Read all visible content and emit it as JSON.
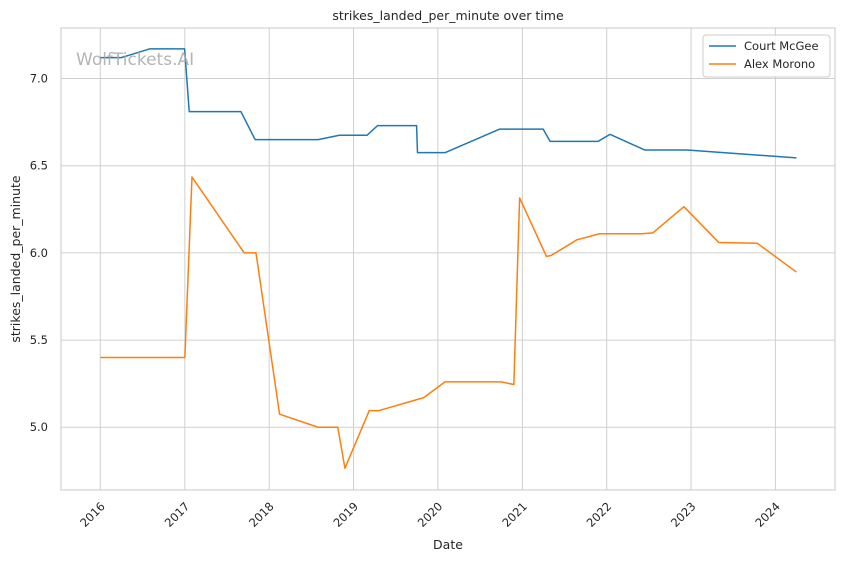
{
  "chart_data": {
    "type": "line",
    "title": "strikes_landed_per_minute over time",
    "xlabel": "Date",
    "ylabel": "strikes_landed_per_minute",
    "watermark": "WolfTickets.AI",
    "x_ticks": [
      "2016",
      "2017",
      "2018",
      "2019",
      "2020",
      "2021",
      "2022",
      "2023",
      "2024"
    ],
    "y_ticks": [
      "5.0",
      "5.5",
      "6.0",
      "6.5",
      "7.0"
    ],
    "xlim": [
      "2015-07-15",
      "2024-09-15"
    ],
    "ylim": [
      4.64,
      7.29
    ],
    "grid": true,
    "legend_position": "top-right",
    "colors": {
      "series0": "#1f77b4",
      "series1": "#ff7f0e",
      "grid": "#d0d0d0",
      "axes": "#c8c8c8"
    },
    "series": [
      {
        "name": "Court McGee",
        "points": [
          [
            "2016-01-01",
            7.12
          ],
          [
            "2016-04-01",
            7.12
          ],
          [
            "2016-08-01",
            7.17
          ],
          [
            "2016-12-31",
            7.17
          ],
          [
            "2017-01-20",
            6.81
          ],
          [
            "2017-09-01",
            6.81
          ],
          [
            "2017-11-01",
            6.65
          ],
          [
            "2018-08-01",
            6.65
          ],
          [
            "2018-11-01",
            6.675
          ],
          [
            "2019-03-01",
            6.675
          ],
          [
            "2019-04-15",
            6.73
          ],
          [
            "2019-10-01",
            6.73
          ],
          [
            "2019-10-05",
            6.575
          ],
          [
            "2020-02-01",
            6.575
          ],
          [
            "2020-09-25",
            6.71
          ],
          [
            "2021-04-01",
            6.71
          ],
          [
            "2021-05-01",
            6.64
          ],
          [
            "2021-11-25",
            6.64
          ],
          [
            "2022-01-15",
            6.68
          ],
          [
            "2022-06-15",
            6.59
          ],
          [
            "2022-12-15",
            6.59
          ],
          [
            "2024-04-01",
            6.545
          ]
        ]
      },
      {
        "name": "Alex Morono",
        "points": [
          [
            "2016-01-01",
            5.4
          ],
          [
            "2017-01-01",
            5.4
          ],
          [
            "2017-02-01",
            6.435
          ],
          [
            "2017-09-15",
            6.0
          ],
          [
            "2017-11-05",
            6.0
          ],
          [
            "2018-02-15",
            5.075
          ],
          [
            "2018-08-01",
            5.0
          ],
          [
            "2018-10-25",
            5.0
          ],
          [
            "2018-11-25",
            4.765
          ],
          [
            "2019-03-10",
            5.095
          ],
          [
            "2019-04-20",
            5.095
          ],
          [
            "2019-11-01",
            5.17
          ],
          [
            "2020-02-01",
            5.26
          ],
          [
            "2020-10-01",
            5.26
          ],
          [
            "2020-11-25",
            5.245
          ],
          [
            "2020-12-20",
            6.315
          ],
          [
            "2021-04-15",
            5.98
          ],
          [
            "2021-05-05",
            5.985
          ],
          [
            "2021-08-25",
            6.075
          ],
          [
            "2021-12-01",
            6.11
          ],
          [
            "2022-06-01",
            6.11
          ],
          [
            "2022-07-20",
            6.115
          ],
          [
            "2022-12-01",
            6.265
          ],
          [
            "2023-05-01",
            6.06
          ],
          [
            "2023-10-15",
            6.055
          ],
          [
            "2024-04-01",
            5.89
          ]
        ]
      }
    ]
  }
}
